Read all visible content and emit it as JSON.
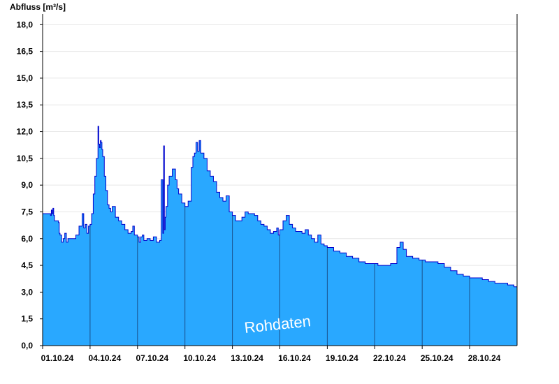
{
  "chart_data": {
    "type": "area",
    "title": "",
    "ylabel": "Abfluss [m³/s]",
    "xlabel": "",
    "ylim": [
      0,
      18.6
    ],
    "xlim": [
      0,
      30
    ],
    "grid": "horizontal",
    "yticks": [
      0.0,
      1.5,
      3.0,
      4.5,
      6.0,
      7.5,
      9.0,
      10.5,
      12.0,
      13.5,
      15.0,
      16.5,
      18.0
    ],
    "ytick_labels": [
      "0,0",
      "1,5",
      "3,0",
      "4,5",
      "6,0",
      "7,5",
      "9,0",
      "10,5",
      "12,0",
      "13,5",
      "15,0",
      "16,5",
      "18,0"
    ],
    "xticks": [
      0,
      3,
      6,
      9,
      12,
      15,
      18,
      21,
      24,
      27
    ],
    "xtick_labels": [
      "01.10.24",
      "04.10.24",
      "07.10.24",
      "10.10.24",
      "13.10.24",
      "16.10.24",
      "19.10.24",
      "22.10.24",
      "25.10.24",
      "28.10.24"
    ],
    "annotation": "Rohdaten",
    "colors": {
      "fill": "#29a8ff",
      "line": "#0000cc",
      "day_lines": "#1a4f8a"
    },
    "series": [
      {
        "x": [
          0,
          0.5,
          0.55,
          0.6,
          0.65,
          0.7,
          0.75,
          1.0,
          1.05,
          1.1,
          1.2,
          1.3,
          1.4,
          1.5,
          1.6,
          1.7,
          1.8,
          2.0,
          2.1,
          2.3,
          2.4,
          2.5,
          2.6,
          2.7,
          2.8,
          2.9,
          3.0,
          3.1,
          3.2,
          3.3,
          3.4,
          3.5,
          3.55,
          3.6,
          3.65,
          3.7,
          3.75,
          3.8,
          3.9,
          4.0,
          4.1,
          4.2,
          4.3,
          4.4,
          4.6,
          4.8,
          5.0,
          5.2,
          5.4,
          5.6,
          5.7,
          5.8,
          6.0,
          6.1,
          6.2,
          6.3,
          6.4,
          6.6,
          6.8,
          7.0,
          7.2,
          7.4,
          7.5,
          7.6,
          7.65,
          7.7,
          7.75,
          7.8,
          7.9,
          8.0,
          8.2,
          8.4,
          8.5,
          8.6,
          8.8,
          9.0,
          9.2,
          9.4,
          9.5,
          9.6,
          9.7,
          9.8,
          9.9,
          10.0,
          10.2,
          10.4,
          10.6,
          10.8,
          11.0,
          11.2,
          11.4,
          11.6,
          11.8,
          12.0,
          12.2,
          12.4,
          12.6,
          12.8,
          13.0,
          13.2,
          13.4,
          13.6,
          13.8,
          14.0,
          14.2,
          14.4,
          14.6,
          14.8,
          14.9,
          15.0,
          15.2,
          15.4,
          15.6,
          15.8,
          16.0,
          16.2,
          16.4,
          16.6,
          16.8,
          17.0,
          17.2,
          17.4,
          17.6,
          17.8,
          18.0,
          18.4,
          18.8,
          19.2,
          19.6,
          20.0,
          20.4,
          20.8,
          21.2,
          21.6,
          22.0,
          22.4,
          22.6,
          22.8,
          23.0,
          23.4,
          23.8,
          24.2,
          24.6,
          25.0,
          25.4,
          25.8,
          26.2,
          26.6,
          27.0,
          27.4,
          27.8,
          28.2,
          28.6,
          29.0,
          29.4,
          29.8,
          30.0
        ],
        "y": [
          7.4,
          7.3,
          7.6,
          7.4,
          7.7,
          7.3,
          7.0,
          6.9,
          6.3,
          6.2,
          5.8,
          6.0,
          6.3,
          5.8,
          6.0,
          6.0,
          6.0,
          6.0,
          6.2,
          6.7,
          6.7,
          7.4,
          6.6,
          6.8,
          6.3,
          6.7,
          6.8,
          7.4,
          8.5,
          9.5,
          10.5,
          12.3,
          11.3,
          11.1,
          11.5,
          11.4,
          11.0,
          10.6,
          9.5,
          8.7,
          7.9,
          7.7,
          7.5,
          7.8,
          7.2,
          7.0,
          6.8,
          6.5,
          6.3,
          6.4,
          6.7,
          6.2,
          6.1,
          5.8,
          6.1,
          6.2,
          5.9,
          6.0,
          5.9,
          6.1,
          5.8,
          5.9,
          9.3,
          6.3,
          11.2,
          6.5,
          7.2,
          7.8,
          9.0,
          9.5,
          9.9,
          9.3,
          8.8,
          8.5,
          8.0,
          7.8,
          8.1,
          10.0,
          10.6,
          10.8,
          11.4,
          10.9,
          11.5,
          10.8,
          10.5,
          9.8,
          9.5,
          9.2,
          8.6,
          8.3,
          8.1,
          8.4,
          7.5,
          7.3,
          7.0,
          7.0,
          7.2,
          7.5,
          7.4,
          7.4,
          7.3,
          7.0,
          6.8,
          6.7,
          6.5,
          6.3,
          6.4,
          6.6,
          6.2,
          6.5,
          7.0,
          7.3,
          6.8,
          6.6,
          6.4,
          6.4,
          6.3,
          6.5,
          6.2,
          6.0,
          5.8,
          6.2,
          5.7,
          5.6,
          5.5,
          5.3,
          5.2,
          5.0,
          4.9,
          4.7,
          4.6,
          4.6,
          4.5,
          4.5,
          4.6,
          5.5,
          5.8,
          5.4,
          5.0,
          4.9,
          4.8,
          4.7,
          4.7,
          4.6,
          4.4,
          4.2,
          4.0,
          3.9,
          3.8,
          3.8,
          3.7,
          3.6,
          3.5,
          3.5,
          3.4,
          3.3,
          3.2
        ]
      }
    ]
  }
}
